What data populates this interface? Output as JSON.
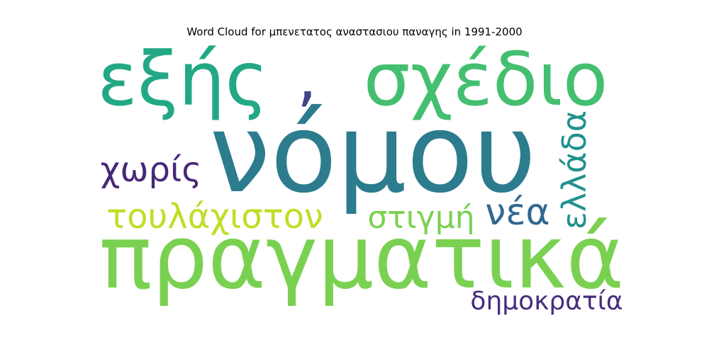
{
  "title": "Word Cloud for μπενετατος αναστασιου παναγης in 1991-2000",
  "words": [
    {
      "text": "νόμου",
      "color": "#2c7c8e"
    },
    {
      "text": "πραγματικά",
      "color": "#7ad151"
    },
    {
      "text": "εξής",
      "color": "#22a884"
    },
    {
      "text": "σχέδιο",
      "color": "#44bf70"
    },
    {
      "text": ",",
      "color": "#414487"
    },
    {
      "text": "τουλάχιστον",
      "color": "#bddf26"
    },
    {
      "text": "χωρίς",
      "color": "#482878"
    },
    {
      "text": "στιγμή",
      "color": "#7ad151"
    },
    {
      "text": "νέα",
      "color": "#31688e"
    },
    {
      "text": "ελλάδα",
      "color": "#21918c"
    },
    {
      "text": "δημοκρατία",
      "color": "#472d7b"
    }
  ]
}
